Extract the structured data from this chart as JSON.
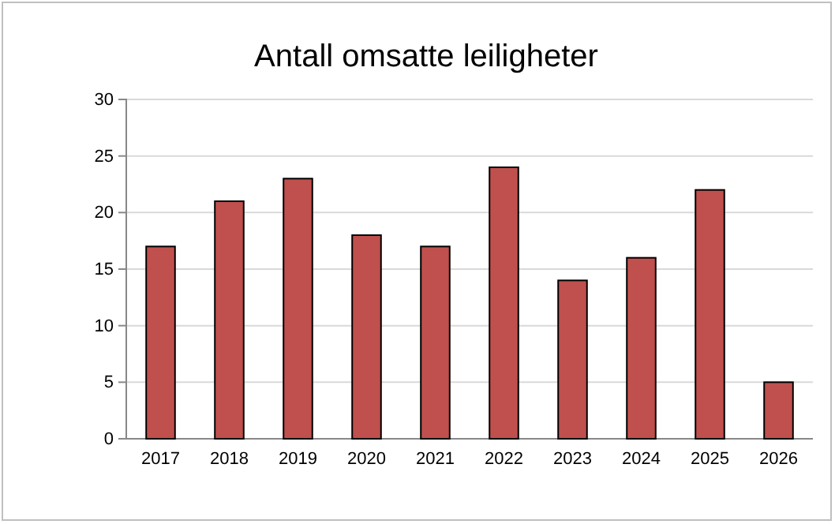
{
  "chart_data": {
    "type": "bar",
    "title": "Antall omsatte leiligheter",
    "categories": [
      "2017",
      "2018",
      "2019",
      "2020",
      "2021",
      "2022",
      "2023",
      "2024",
      "2025",
      "2026"
    ],
    "values": [
      17,
      21,
      23,
      18,
      17,
      24,
      14,
      16,
      22,
      5
    ],
    "color": "#c0504d",
    "ylim": [
      0,
      30
    ],
    "yticks": [
      0,
      5,
      10,
      15,
      20,
      25,
      30
    ],
    "grid": "y"
  }
}
